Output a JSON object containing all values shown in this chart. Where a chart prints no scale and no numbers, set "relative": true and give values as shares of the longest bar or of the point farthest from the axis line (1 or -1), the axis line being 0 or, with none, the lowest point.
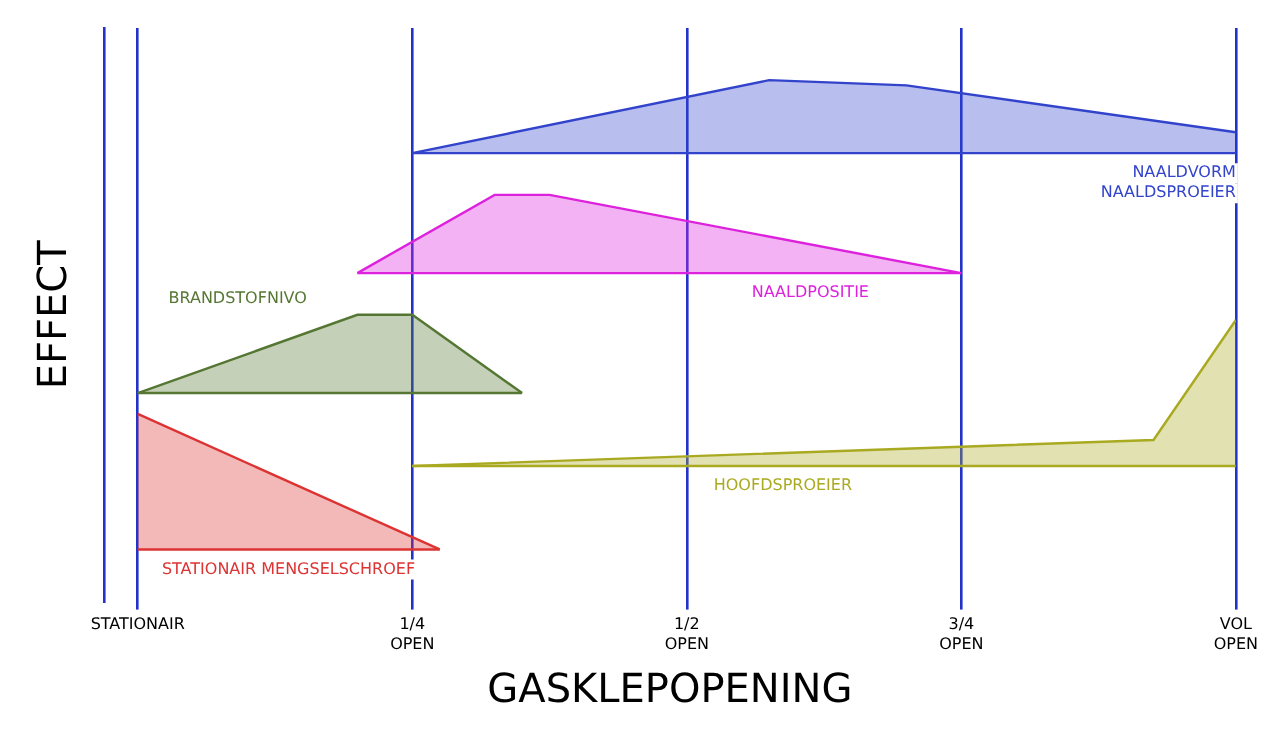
{
  "chart_data": {
    "type": "line",
    "relative": true,
    "xlabel": "GASKLEPOPENING",
    "ylabel": "EFFECT",
    "grid": "x",
    "tick_labels": "x",
    "legend": false,
    "categories": [
      "STATIONAIR",
      null,
      null,
      null,
      null,
      null,
      null,
      null,
      null,
      null,
      "1/4\nOPEN",
      null,
      null,
      null,
      null,
      null,
      null,
      null,
      null,
      null,
      "1/2\nOPEN",
      null,
      null,
      null,
      null,
      null,
      null,
      null,
      null,
      null,
      "3/4\nOPEN",
      null,
      null,
      null,
      null,
      null,
      null,
      null,
      null,
      null,
      "VOL\nOPEN"
    ],
    "series": [
      {
        "color": "#3344cc",
        "values": [
          null,
          null,
          null,
          null,
          null,
          null,
          null,
          null,
          null,
          null,
          0.86,
          null,
          null,
          null,
          null,
          null,
          null,
          null,
          null,
          null,
          null,
          null,
          null,
          0.86,
          null,
          null,
          null,
          null,
          0.86,
          null,
          null,
          null,
          null,
          null,
          null,
          null,
          null,
          null,
          null,
          null,
          0.86
        ]
      },
      {
        "name": "NAALDVORM\nNAALDSPROEIER",
        "color": "#3344cc",
        "values": [
          null,
          null,
          null,
          null,
          null,
          null,
          null,
          null,
          null,
          null,
          0.86,
          null,
          null,
          null,
          null,
          null,
          null,
          null,
          null,
          null,
          null,
          null,
          null,
          1,
          null,
          null,
          null,
          null,
          0.99,
          null,
          null,
          null,
          null,
          null,
          null,
          null,
          null,
          null,
          null,
          null,
          0.9
        ],
        "upper": [
          null,
          null,
          null,
          null,
          null,
          null,
          null,
          null,
          null,
          null,
          0.86,
          null,
          null,
          null,
          null,
          null,
          null,
          null,
          null,
          null,
          null,
          null,
          null,
          1,
          null,
          null,
          null,
          null,
          0.99,
          null,
          null,
          null,
          null,
          null,
          null,
          null,
          null,
          null,
          null,
          null,
          0.9
        ],
        "lower": [
          null,
          null,
          null,
          null,
          null,
          null,
          null,
          null,
          null,
          null,
          0.86,
          null,
          null,
          null,
          null,
          null,
          null,
          null,
          null,
          null,
          null,
          null,
          null,
          0.86,
          null,
          null,
          null,
          null,
          0.86,
          null,
          null,
          null,
          null,
          null,
          null,
          null,
          null,
          null,
          null,
          null,
          0.86
        ]
      },
      {
        "color": "#dd22dd",
        "values": [
          null,
          null,
          null,
          null,
          null,
          null,
          null,
          null,
          0.63,
          null,
          null,
          null,
          null,
          0.63,
          null,
          0.63,
          null,
          null,
          null,
          null,
          null,
          null,
          null,
          null,
          null,
          null,
          null,
          null,
          null,
          null,
          0.63,
          null,
          null,
          null,
          null,
          null,
          null,
          null,
          null,
          null,
          null
        ]
      },
      {
        "name": "NAALDPOSITIE",
        "color": "#dd22dd",
        "values": [
          null,
          null,
          null,
          null,
          null,
          null,
          null,
          null,
          0.63,
          null,
          null,
          null,
          null,
          0.78,
          null,
          0.78,
          null,
          null,
          null,
          null,
          null,
          null,
          null,
          null,
          null,
          null,
          null,
          null,
          null,
          null,
          0.63,
          null,
          null,
          null,
          null,
          null,
          null,
          null,
          null,
          null,
          null
        ],
        "upper": [
          null,
          null,
          null,
          null,
          null,
          null,
          null,
          null,
          0.63,
          null,
          null,
          null,
          null,
          0.78,
          null,
          0.78,
          null,
          null,
          null,
          null,
          null,
          null,
          null,
          null,
          null,
          null,
          null,
          null,
          null,
          null,
          0.63,
          null,
          null,
          null,
          null,
          null,
          null,
          null,
          null,
          null,
          null
        ],
        "lower": [
          null,
          null,
          null,
          null,
          null,
          null,
          null,
          null,
          0.63,
          null,
          null,
          null,
          null,
          0.63,
          null,
          0.63,
          null,
          null,
          null,
          null,
          null,
          null,
          null,
          null,
          null,
          null,
          null,
          null,
          null,
          null,
          0.63,
          null,
          null,
          null,
          null,
          null,
          null,
          null,
          null,
          null,
          null
        ]
      },
      {
        "color": "#557733",
        "values": [
          0.4,
          null,
          null,
          null,
          null,
          null,
          null,
          null,
          0.4,
          null,
          0.4,
          null,
          null,
          null,
          0.4,
          null,
          null,
          null,
          null,
          null,
          null,
          null,
          null,
          null,
          null,
          null,
          null,
          null,
          null,
          null,
          null,
          null,
          null,
          null,
          null,
          null,
          null,
          null,
          null,
          null,
          null
        ]
      },
      {
        "name": "BRANDSTOFNIVO",
        "color": "#557733",
        "values": [
          0.4,
          null,
          null,
          null,
          null,
          null,
          null,
          null,
          0.55,
          null,
          0.55,
          null,
          null,
          null,
          0.4,
          null,
          null,
          null,
          null,
          null,
          null,
          null,
          null,
          null,
          null,
          null,
          null,
          null,
          null,
          null,
          null,
          null,
          null,
          null,
          null,
          null,
          null,
          null,
          null,
          null,
          null
        ],
        "upper": [
          0.4,
          null,
          null,
          null,
          null,
          null,
          null,
          null,
          0.55,
          null,
          0.55,
          null,
          null,
          null,
          0.4,
          null,
          null,
          null,
          null,
          null,
          null,
          null,
          null,
          null,
          null,
          null,
          null,
          null,
          null,
          null,
          null,
          null,
          null,
          null,
          null,
          null,
          null,
          null,
          null,
          null,
          null
        ],
        "lower": [
          0.4,
          null,
          null,
          null,
          null,
          null,
          null,
          null,
          0.4,
          null,
          0.4,
          null,
          null,
          null,
          0.4,
          null,
          null,
          null,
          null,
          null,
          null,
          null,
          null,
          null,
          null,
          null,
          null,
          null,
          null,
          null,
          null,
          null,
          null,
          null,
          null,
          null,
          null,
          null,
          null,
          null,
          null
        ]
      },
      {
        "color": "#dd3333",
        "values": [
          0.1,
          null,
          null,
          null,
          null,
          null,
          null,
          null,
          null,
          null,
          null,
          0.1,
          null,
          null,
          null,
          null,
          null,
          null,
          null,
          null,
          null,
          null,
          null,
          null,
          null,
          null,
          null,
          null,
          null,
          null,
          null,
          null,
          null,
          null,
          null,
          null,
          null,
          null,
          null,
          null,
          null
        ]
      },
      {
        "name": "STATIONAIR MENGSELSCHROEF",
        "color": "#dd3333",
        "values": [
          0.36,
          null,
          null,
          null,
          null,
          null,
          null,
          null,
          null,
          null,
          null,
          0.1,
          null,
          null,
          null,
          null,
          null,
          null,
          null,
          null,
          null,
          null,
          null,
          null,
          null,
          null,
          null,
          null,
          null,
          null,
          null,
          null,
          null,
          null,
          null,
          null,
          null,
          null,
          null,
          null,
          null
        ],
        "upper": [
          0.36,
          null,
          null,
          null,
          null,
          null,
          null,
          null,
          null,
          null,
          null,
          0.1,
          null,
          null,
          null,
          null,
          null,
          null,
          null,
          null,
          null,
          null,
          null,
          null,
          null,
          null,
          null,
          null,
          null,
          null,
          null,
          null,
          null,
          null,
          null,
          null,
          null,
          null,
          null,
          null,
          null
        ],
        "lower": [
          0.1,
          null,
          null,
          null,
          null,
          null,
          null,
          null,
          null,
          null,
          null,
          0.1,
          null,
          null,
          null,
          null,
          null,
          null,
          null,
          null,
          null,
          null,
          null,
          null,
          null,
          null,
          null,
          null,
          null,
          null,
          null,
          null,
          null,
          null,
          null,
          null,
          null,
          null,
          null,
          null,
          null
        ]
      },
      {
        "color": "#aaaa22",
        "values": [
          null,
          null,
          null,
          null,
          null,
          null,
          null,
          null,
          null,
          null,
          0.26,
          null,
          null,
          null,
          null,
          null,
          null,
          null,
          null,
          null,
          null,
          null,
          null,
          null,
          null,
          null,
          null,
          null,
          null,
          null,
          null,
          null,
          null,
          null,
          null,
          null,
          null,
          0.26,
          null,
          null,
          0.26
        ]
      },
      {
        "name": "HOOFDSPROEIER",
        "color": "#aaaa22",
        "values": [
          null,
          null,
          null,
          null,
          null,
          null,
          null,
          null,
          null,
          null,
          0.26,
          null,
          null,
          null,
          null,
          null,
          null,
          null,
          null,
          null,
          null,
          null,
          null,
          null,
          null,
          null,
          null,
          null,
          null,
          null,
          null,
          null,
          null,
          null,
          null,
          null,
          null,
          0.31,
          null,
          null,
          0.54
        ],
        "upper": [
          null,
          null,
          null,
          null,
          null,
          null,
          null,
          null,
          null,
          null,
          0.26,
          null,
          null,
          null,
          null,
          null,
          null,
          null,
          null,
          null,
          null,
          null,
          null,
          null,
          null,
          null,
          null,
          null,
          null,
          null,
          null,
          null,
          null,
          null,
          null,
          null,
          null,
          0.31,
          null,
          null,
          0.54
        ],
        "lower": [
          null,
          null,
          null,
          null,
          null,
          null,
          null,
          null,
          null,
          null,
          0.26,
          null,
          null,
          null,
          null,
          null,
          null,
          null,
          null,
          null,
          null,
          null,
          null,
          null,
          null,
          null,
          null,
          null,
          null,
          null,
          null,
          null,
          null,
          null,
          null,
          null,
          null,
          0.26,
          null,
          null,
          0.26
        ]
      }
    ]
  }
}
